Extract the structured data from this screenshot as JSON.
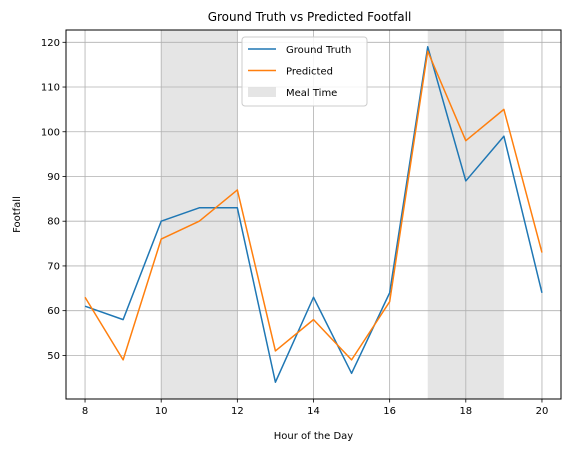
{
  "chart_data": {
    "type": "line",
    "title": "Ground Truth vs Predicted Footfall",
    "xlabel": "Hour of the Day",
    "ylabel": "Footfall",
    "x": [
      8,
      9,
      10,
      11,
      12,
      13,
      14,
      15,
      16,
      17,
      18,
      19,
      20
    ],
    "series": [
      {
        "name": "Ground Truth",
        "color": "#1f77b4",
        "values": [
          61,
          58,
          80,
          83,
          83,
          44,
          63,
          46,
          64,
          119,
          89,
          99,
          64
        ]
      },
      {
        "name": "Predicted",
        "color": "#ff7f0e",
        "values": [
          63,
          49,
          76,
          80,
          87,
          51,
          58,
          49,
          62,
          118,
          98,
          105,
          73
        ]
      }
    ],
    "shaded_regions": [
      {
        "label": "Meal Time",
        "x_start": 10,
        "x_end": 12,
        "color": "#d3d3d3"
      },
      {
        "label": "Meal Time",
        "x_start": 17,
        "x_end": 19,
        "color": "#d3d3d3"
      }
    ],
    "legend": {
      "placement": "upper-center",
      "entries": [
        {
          "label": "Ground Truth",
          "kind": "line",
          "color": "#1f77b4"
        },
        {
          "label": "Predicted",
          "kind": "line",
          "color": "#ff7f0e"
        },
        {
          "label": "Meal Time",
          "kind": "patch",
          "color": "#d3d3d3"
        }
      ]
    },
    "xticks": [
      8,
      10,
      12,
      14,
      16,
      18,
      20
    ],
    "yticks": [
      50,
      60,
      70,
      80,
      90,
      100,
      110,
      120
    ],
    "xlim": [
      7.5,
      20.5
    ],
    "ylim": [
      40.25,
      122.75
    ],
    "grid": true
  }
}
